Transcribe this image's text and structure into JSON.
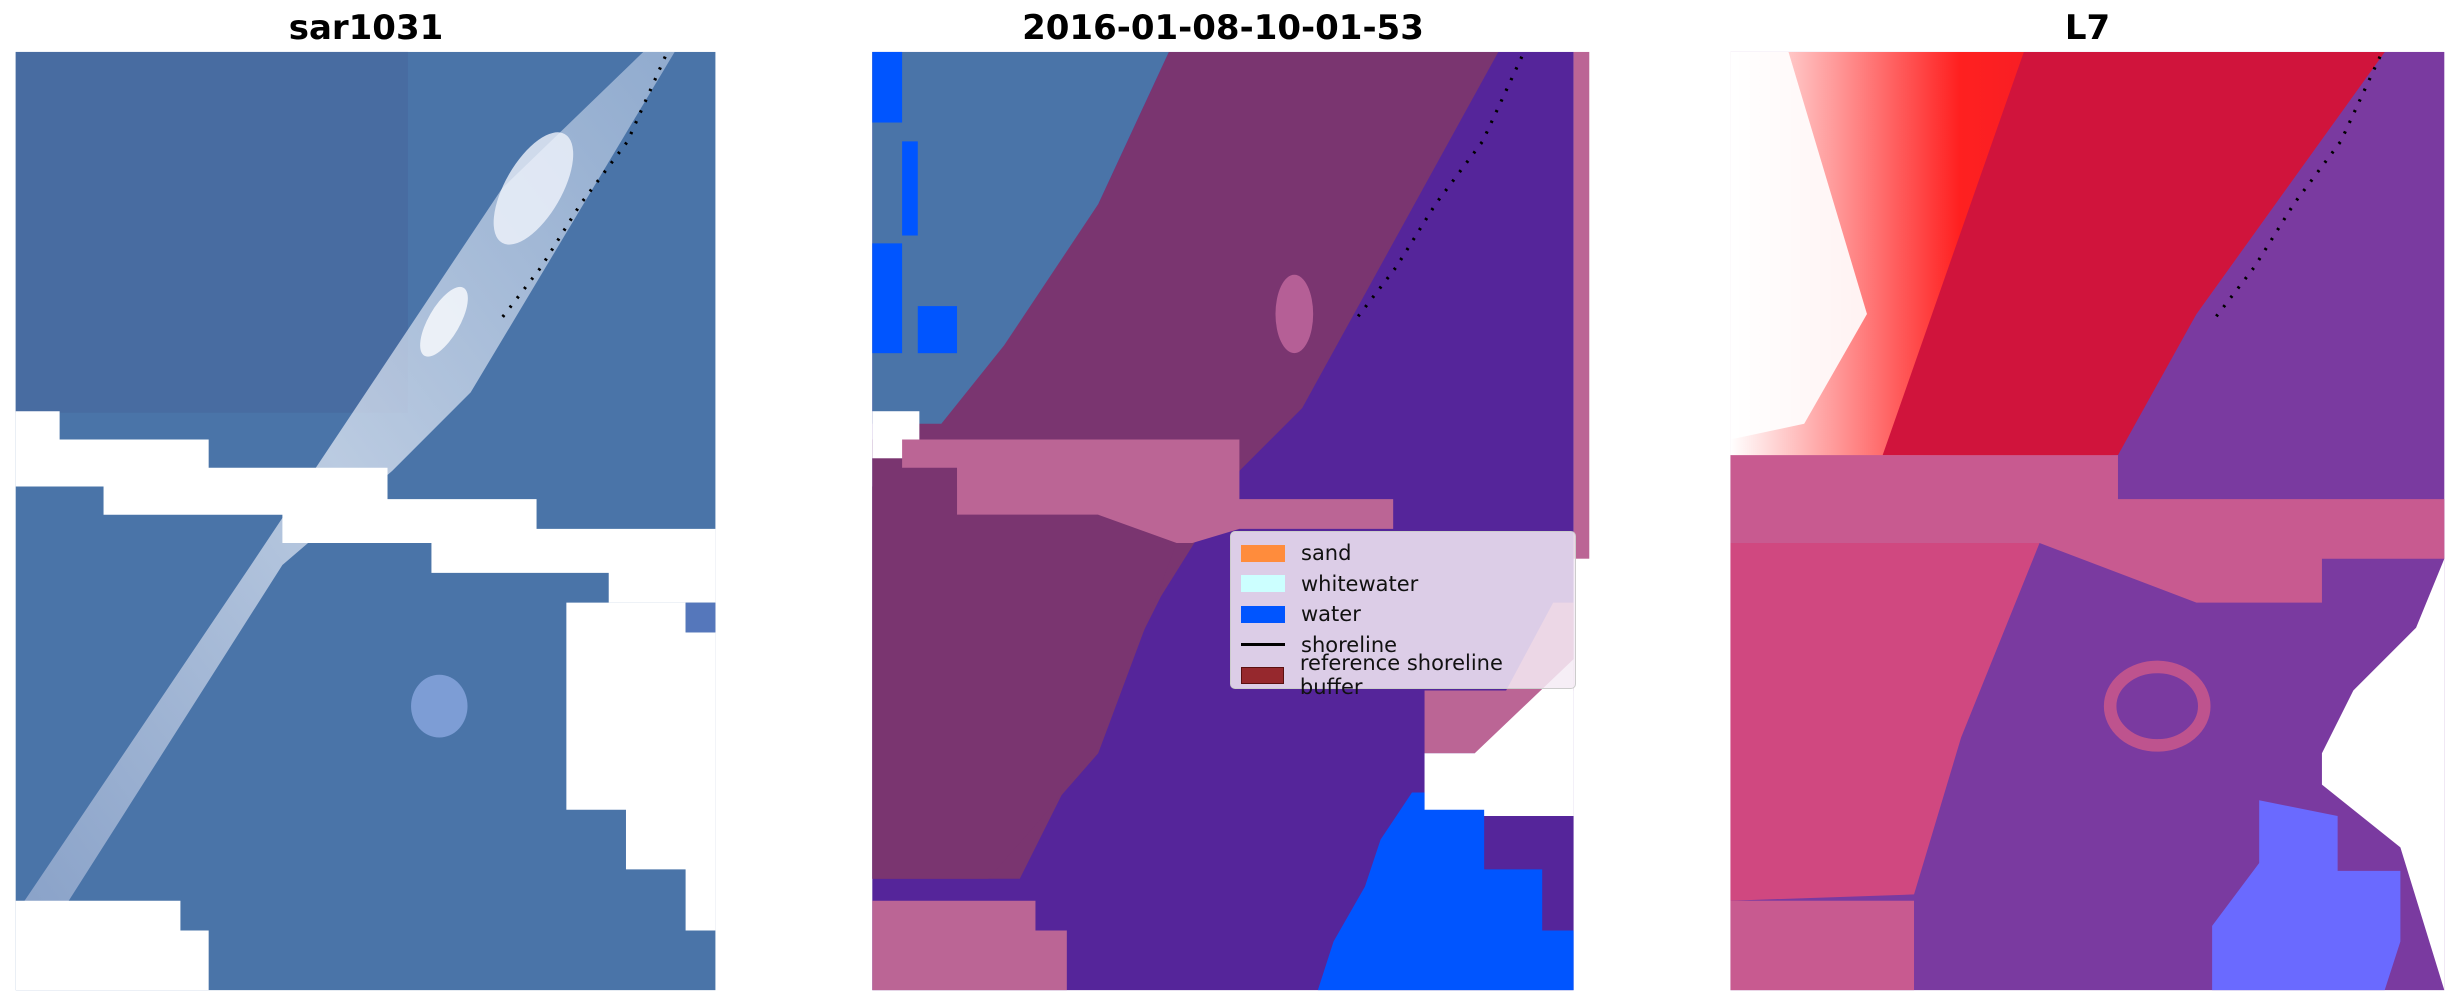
{
  "panels": [
    {
      "title": "sar1031"
    },
    {
      "title": "2016-01-08-10-01-53"
    },
    {
      "title": "L7"
    }
  ],
  "legend": {
    "items": [
      {
        "label": "sand",
        "color": "#ff8c3c",
        "kind": "patch"
      },
      {
        "label": "whitewater",
        "color": "#ccffff",
        "kind": "patch"
      },
      {
        "label": "water",
        "color": "#0055ff",
        "kind": "patch"
      },
      {
        "label": "shoreline",
        "color": "#000000",
        "kind": "line"
      },
      {
        "label": "reference shoreline buffer",
        "color": "#96282d",
        "kind": "patch"
      }
    ]
  },
  "colors": {
    "rgb_water": "#4a74a8",
    "class_sand_overlay": "#7a3570",
    "class_water_overlay": "#55259a",
    "buffer_overlay": "#bb6595",
    "l7_red": "#d0143c",
    "l7_purple": "#7a3aa0"
  }
}
